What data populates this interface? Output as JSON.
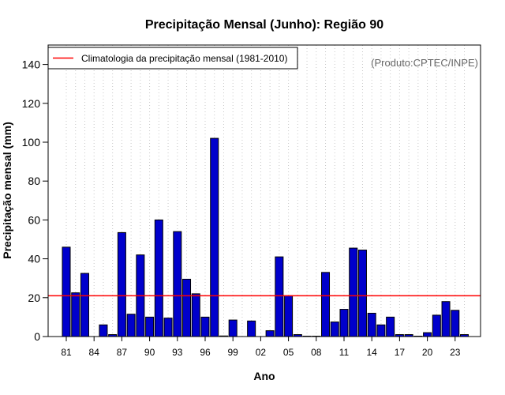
{
  "chart_data": {
    "type": "bar",
    "title": "Precipitação Mensal (Junho): Região 90",
    "xlabel": "Ano",
    "ylabel": "Precipitação mensal (mm)",
    "ylim": [
      0,
      150
    ],
    "yticks": [
      0,
      20,
      40,
      60,
      80,
      100,
      120,
      140
    ],
    "grid": "vertical dotted lines",
    "legend_position": "top-left",
    "credit": "(Produto:CPTEC/INPE)",
    "categories": [
      "81",
      "82",
      "83",
      "84",
      "85",
      "86",
      "87",
      "88",
      "89",
      "90",
      "91",
      "92",
      "93",
      "94",
      "95",
      "96",
      "97",
      "98",
      "99",
      "00",
      "01",
      "02",
      "03",
      "04",
      "05",
      "06",
      "07",
      "08",
      "09",
      "10",
      "11",
      "12",
      "13",
      "14",
      "15",
      "16",
      "17",
      "18",
      "19",
      "20",
      "21",
      "22",
      "23",
      "24"
    ],
    "xtick_labels": [
      "81",
      "84",
      "87",
      "90",
      "93",
      "96",
      "99",
      "02",
      "05",
      "08",
      "11",
      "14",
      "17",
      "20",
      "23"
    ],
    "series": [
      {
        "values": [
          46.0,
          22.5,
          32.5,
          0.0,
          6.0,
          1.0,
          53.5,
          11.5,
          42.0,
          10.0,
          60.0,
          9.5,
          54.0,
          29.5,
          22.0,
          10.0,
          102.0,
          0.3,
          8.5,
          0.0,
          8.0,
          0.0,
          3.0,
          41.0,
          21.0,
          1.0,
          0.2,
          0.2,
          33.0,
          7.5,
          14.0,
          45.5,
          44.5,
          12.0,
          6.0,
          10.0,
          1.0,
          1.0,
          0.2,
          2.0,
          11.0,
          18.0,
          13.5,
          1.0
        ],
        "color": "#0000cc"
      }
    ],
    "reference_line": {
      "name": "Climatologia da precipitação mensal (1981-2010)",
      "value": 21.0,
      "color": "#ff0000"
    }
  }
}
